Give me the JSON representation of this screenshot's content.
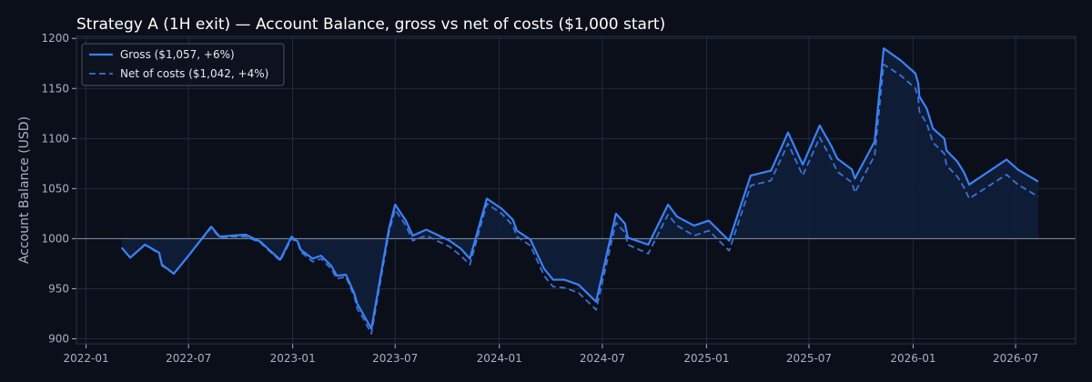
{
  "chart_data": {
    "type": "line",
    "title": "Strategy A (1H exit) — Account Balance, gross vs net of costs ($1,000 start)",
    "xlabel": "",
    "ylabel": "Account Balance (USD)",
    "ylim": [
      895,
      1202
    ],
    "xlim": [
      "2021-12-15",
      "2026-10-15"
    ],
    "grid": true,
    "legend_position": "top-left",
    "baseline": 1000,
    "x_ticks": [
      "2022-01",
      "2022-07",
      "2023-01",
      "2023-07",
      "2024-01",
      "2024-07",
      "2025-01",
      "2025-07",
      "2026-01",
      "2026-07"
    ],
    "y_ticks": [
      900,
      950,
      1000,
      1050,
      1100,
      1150,
      1200
    ],
    "colors": {
      "background": "#0b0f1a",
      "grid": "#283044",
      "axis_text": "#aab1c3",
      "title": "#ffffff",
      "gross": "#3b82f6",
      "net": "#3a72d8",
      "fill": "#0f1e3a",
      "baseline": "#8892a8"
    },
    "series": [
      {
        "name": "Gross ($1,057, +6%)",
        "style": "solid",
        "points": [
          [
            "2022-03-05",
            991
          ],
          [
            "2022-03-20",
            981
          ],
          [
            "2022-04-15",
            994
          ],
          [
            "2022-05-10",
            986
          ],
          [
            "2022-05-15",
            974
          ],
          [
            "2022-06-05",
            965
          ],
          [
            "2022-07-01",
            983
          ],
          [
            "2022-08-10",
            1012
          ],
          [
            "2022-08-25",
            1002
          ],
          [
            "2022-09-15",
            1003
          ],
          [
            "2022-10-10",
            1004
          ],
          [
            "2022-11-05",
            997
          ],
          [
            "2022-11-20",
            989
          ],
          [
            "2022-12-10",
            979
          ],
          [
            "2022-12-30",
            1002
          ],
          [
            "2023-01-10",
            997
          ],
          [
            "2023-01-15",
            989
          ],
          [
            "2023-02-05",
            980
          ],
          [
            "2023-02-20",
            983
          ],
          [
            "2023-03-10",
            973
          ],
          [
            "2023-03-20",
            963
          ],
          [
            "2023-04-05",
            964
          ],
          [
            "2023-04-20",
            945
          ],
          [
            "2023-04-25",
            935
          ],
          [
            "2023-05-05",
            925
          ],
          [
            "2023-05-20",
            910
          ],
          [
            "2023-06-20",
            1010
          ],
          [
            "2023-07-01",
            1034
          ],
          [
            "2023-07-20",
            1018
          ],
          [
            "2023-08-01",
            1003
          ],
          [
            "2023-08-25",
            1009
          ],
          [
            "2023-10-05",
            998
          ],
          [
            "2023-10-25",
            990
          ],
          [
            "2023-11-10",
            980
          ],
          [
            "2023-12-10",
            1040
          ],
          [
            "2024-01-05",
            1030
          ],
          [
            "2024-01-25",
            1019
          ],
          [
            "2024-02-01",
            1008
          ],
          [
            "2024-02-25",
            999
          ],
          [
            "2024-03-20",
            970
          ],
          [
            "2024-04-05",
            959
          ],
          [
            "2024-04-25",
            959
          ],
          [
            "2024-05-20",
            954
          ],
          [
            "2024-06-20",
            937
          ],
          [
            "2024-07-25",
            1025
          ],
          [
            "2024-08-10",
            1015
          ],
          [
            "2024-08-15",
            1001
          ],
          [
            "2024-09-20",
            994
          ],
          [
            "2024-10-25",
            1034
          ],
          [
            "2024-11-10",
            1022
          ],
          [
            "2024-12-10",
            1013
          ],
          [
            "2025-01-05",
            1018
          ],
          [
            "2025-02-10",
            998
          ],
          [
            "2025-03-20",
            1063
          ],
          [
            "2025-04-25",
            1068
          ],
          [
            "2025-05-25",
            1106
          ],
          [
            "2025-06-20",
            1074
          ],
          [
            "2025-07-20",
            1113
          ],
          [
            "2025-08-10",
            1092
          ],
          [
            "2025-08-20",
            1080
          ],
          [
            "2025-09-15",
            1069
          ],
          [
            "2025-09-20",
            1060
          ],
          [
            "2025-10-25",
            1097
          ],
          [
            "2025-11-10",
            1190
          ],
          [
            "2025-12-10",
            1178
          ],
          [
            "2026-01-05",
            1165
          ],
          [
            "2026-01-10",
            1155
          ],
          [
            "2026-01-12",
            1142
          ],
          [
            "2026-01-25",
            1130
          ],
          [
            "2026-02-05",
            1110
          ],
          [
            "2026-02-25",
            1100
          ],
          [
            "2026-03-01",
            1088
          ],
          [
            "2026-03-20",
            1077
          ],
          [
            "2026-04-01",
            1066
          ],
          [
            "2026-04-10",
            1054
          ],
          [
            "2026-06-15",
            1079
          ],
          [
            "2026-07-05",
            1069
          ],
          [
            "2026-08-10",
            1057
          ]
        ]
      },
      {
        "name": "Net of costs ($1,042, +4%)",
        "style": "dashed",
        "points": [
          [
            "2022-03-05",
            991
          ],
          [
            "2022-03-20",
            981
          ],
          [
            "2022-04-15",
            994
          ],
          [
            "2022-05-10",
            985
          ],
          [
            "2022-05-15",
            973
          ],
          [
            "2022-06-05",
            965
          ],
          [
            "2022-07-01",
            983
          ],
          [
            "2022-08-10",
            1011
          ],
          [
            "2022-08-25",
            1001
          ],
          [
            "2022-09-15",
            1002
          ],
          [
            "2022-10-10",
            1002
          ],
          [
            "2022-11-05",
            996
          ],
          [
            "2022-11-20",
            988
          ],
          [
            "2022-12-10",
            978
          ],
          [
            "2022-12-30",
            1000
          ],
          [
            "2023-01-10",
            996
          ],
          [
            "2023-01-15",
            987
          ],
          [
            "2023-02-05",
            977
          ],
          [
            "2023-02-20",
            980
          ],
          [
            "2023-03-10",
            970
          ],
          [
            "2023-03-20",
            960
          ],
          [
            "2023-04-05",
            962
          ],
          [
            "2023-04-20",
            942
          ],
          [
            "2023-04-25",
            930
          ],
          [
            "2023-05-05",
            921
          ],
          [
            "2023-05-20",
            905
          ],
          [
            "2023-06-20",
            1006
          ],
          [
            "2023-07-01",
            1029
          ],
          [
            "2023-07-20",
            1013
          ],
          [
            "2023-08-01",
            998
          ],
          [
            "2023-08-25",
            1003
          ],
          [
            "2023-10-05",
            992
          ],
          [
            "2023-10-25",
            983
          ],
          [
            "2023-11-10",
            974
          ],
          [
            "2023-12-10",
            1035
          ],
          [
            "2024-01-05",
            1025
          ],
          [
            "2024-01-25",
            1013
          ],
          [
            "2024-02-01",
            1002
          ],
          [
            "2024-02-25",
            993
          ],
          [
            "2024-03-20",
            963
          ],
          [
            "2024-04-05",
            952
          ],
          [
            "2024-04-25",
            951
          ],
          [
            "2024-05-20",
            946
          ],
          [
            "2024-06-20",
            929
          ],
          [
            "2024-07-25",
            1016
          ],
          [
            "2024-08-10",
            1006
          ],
          [
            "2024-08-15",
            994
          ],
          [
            "2024-09-20",
            985
          ],
          [
            "2024-10-25",
            1024
          ],
          [
            "2024-11-10",
            1013
          ],
          [
            "2024-12-10",
            1003
          ],
          [
            "2025-01-05",
            1008
          ],
          [
            "2025-02-10",
            988
          ],
          [
            "2025-03-20",
            1053
          ],
          [
            "2025-04-25",
            1058
          ],
          [
            "2025-05-25",
            1095
          ],
          [
            "2025-06-20",
            1063
          ],
          [
            "2025-07-20",
            1101
          ],
          [
            "2025-08-10",
            1079
          ],
          [
            "2025-08-20",
            1067
          ],
          [
            "2025-09-15",
            1056
          ],
          [
            "2025-09-20",
            1046
          ],
          [
            "2025-10-25",
            1083
          ],
          [
            "2025-11-10",
            1174
          ],
          [
            "2025-12-10",
            1163
          ],
          [
            "2026-01-05",
            1150
          ],
          [
            "2026-01-10",
            1140
          ],
          [
            "2026-01-12",
            1127
          ],
          [
            "2026-01-25",
            1115
          ],
          [
            "2026-02-05",
            1096
          ],
          [
            "2026-02-25",
            1085
          ],
          [
            "2026-03-01",
            1073
          ],
          [
            "2026-03-20",
            1062
          ],
          [
            "2026-04-01",
            1051
          ],
          [
            "2026-04-10",
            1040
          ],
          [
            "2026-06-15",
            1064
          ],
          [
            "2026-07-05",
            1054
          ],
          [
            "2026-08-10",
            1042
          ]
        ]
      }
    ]
  }
}
